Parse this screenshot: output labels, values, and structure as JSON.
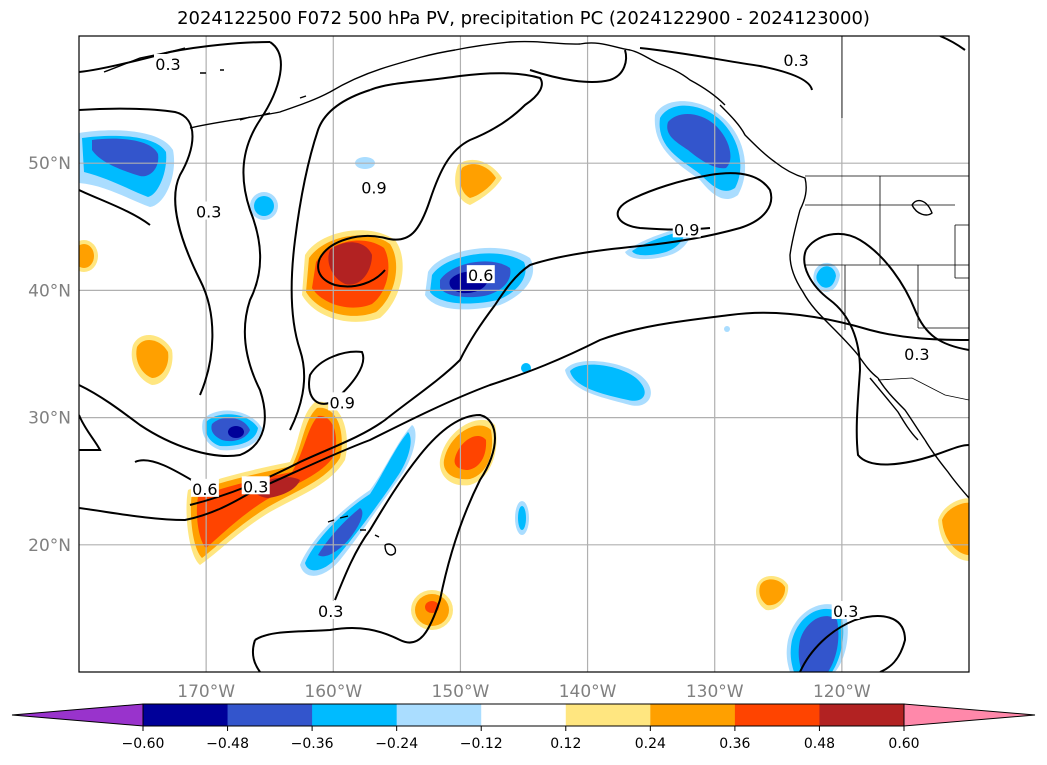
{
  "title": "2024122500 F072 500 hPa PV, precipitation PC (2024122900 - 2024123000)",
  "map": {
    "lon_range": [
      -180,
      -110
    ],
    "lat_range": [
      10,
      60
    ],
    "lat_ticks": [
      {
        "value": 20,
        "label": "20°N"
      },
      {
        "value": 30,
        "label": "30°N"
      },
      {
        "value": 40,
        "label": "40°N"
      },
      {
        "value": 50,
        "label": "50°N"
      }
    ],
    "lon_ticks": [
      {
        "value": -170,
        "label": "170°W"
      },
      {
        "value": -160,
        "label": "160°W"
      },
      {
        "value": -150,
        "label": "150°W"
      },
      {
        "value": -140,
        "label": "140°W"
      },
      {
        "value": -130,
        "label": "130°W"
      },
      {
        "value": -120,
        "label": "120°W"
      }
    ],
    "gridlines": true
  },
  "contour_labels": [
    {
      "text": "0.3",
      "lon": -173,
      "lat": 57.8
    },
    {
      "text": "0.3",
      "lon": -169.8,
      "lat": 46.2
    },
    {
      "text": "0.9",
      "lon": -156.8,
      "lat": 48.1
    },
    {
      "text": "0.6",
      "lon": -148.4,
      "lat": 41.2
    },
    {
      "text": "0.9",
      "lon": -159.3,
      "lat": 31.2
    },
    {
      "text": "0.6",
      "lon": -170.1,
      "lat": 24.4
    },
    {
      "text": "0.3",
      "lon": -166.1,
      "lat": 24.6
    },
    {
      "text": "0.3",
      "lon": -160.2,
      "lat": 14.8
    },
    {
      "text": "0.3",
      "lon": -123.6,
      "lat": 58.1
    },
    {
      "text": "0.9",
      "lon": -132.2,
      "lat": 44.8
    },
    {
      "text": "0.3",
      "lon": -119.7,
      "lat": 14.8
    },
    {
      "text": "0.3",
      "lon": -114.1,
      "lat": 35.0
    }
  ],
  "colorbar": {
    "levels": [
      -0.6,
      -0.48,
      -0.36,
      -0.24,
      -0.12,
      0.12,
      0.24,
      0.36,
      0.48,
      0.6
    ],
    "tick_labels": [
      "−0.60",
      "−0.48",
      "−0.36",
      "−0.24",
      "−0.12",
      "0.12",
      "0.24",
      "0.36",
      "0.48",
      "0.60"
    ],
    "colors": [
      "#9933cc",
      "#000099",
      "#3355cc",
      "#00bbff",
      "#aaddff",
      "#ffffff",
      "#ffe680",
      "#ffa000",
      "#ff4400",
      "#b22222",
      "#ff88aa"
    ],
    "extend": "both"
  },
  "colors": {
    "coastline": "#000000",
    "grid": "#b0b0b0",
    "contour": "#000000",
    "axis_label": "#808080"
  }
}
